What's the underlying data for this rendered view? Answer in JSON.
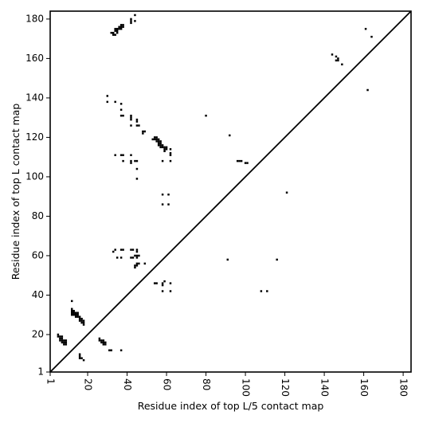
{
  "chart_data": {
    "type": "scatter",
    "xlabel": "Residue index of top L/5 contact map",
    "ylabel": "Residue index of top L contact map",
    "xlim": [
      1,
      184
    ],
    "ylim": [
      1,
      184
    ],
    "xticks": [
      1,
      20,
      40,
      60,
      80,
      100,
      120,
      140,
      160,
      180
    ],
    "yticks": [
      1,
      20,
      40,
      60,
      80,
      100,
      120,
      140,
      160,
      180
    ],
    "diagonal": true,
    "marker_color": "#000000",
    "points": [
      [
        44,
        182
      ],
      [
        44,
        179
      ],
      [
        42,
        180
      ],
      [
        42,
        179
      ],
      [
        42,
        178
      ],
      [
        38,
        177
      ],
      [
        37,
        177
      ],
      [
        38,
        176
      ],
      [
        37,
        176
      ],
      [
        36,
        176
      ],
      [
        37,
        175
      ],
      [
        36,
        175
      ],
      [
        35,
        175
      ],
      [
        34,
        175
      ],
      [
        35,
        174
      ],
      [
        34,
        174
      ],
      [
        35,
        173
      ],
      [
        33,
        173
      ],
      [
        32,
        173
      ],
      [
        34,
        172
      ],
      [
        33,
        172
      ],
      [
        161,
        175
      ],
      [
        164,
        171
      ],
      [
        144,
        162
      ],
      [
        146,
        161
      ],
      [
        147,
        160
      ],
      [
        146,
        159
      ],
      [
        147,
        159
      ],
      [
        149,
        157
      ],
      [
        162,
        144
      ],
      [
        30,
        141
      ],
      [
        30,
        138
      ],
      [
        34,
        138
      ],
      [
        37,
        137
      ],
      [
        37,
        134
      ],
      [
        37,
        131
      ],
      [
        38,
        131
      ],
      [
        42,
        131
      ],
      [
        42,
        130
      ],
      [
        42,
        129
      ],
      [
        45,
        129
      ],
      [
        45,
        128
      ],
      [
        42,
        126
      ],
      [
        45,
        126
      ],
      [
        46,
        126
      ],
      [
        80,
        131
      ],
      [
        48,
        123
      ],
      [
        49,
        123
      ],
      [
        48,
        122
      ],
      [
        92,
        121
      ],
      [
        53,
        119
      ],
      [
        54,
        120
      ],
      [
        55,
        120
      ],
      [
        54,
        119
      ],
      [
        55,
        119
      ],
      [
        56,
        119
      ],
      [
        55,
        118
      ],
      [
        56,
        118
      ],
      [
        57,
        118
      ],
      [
        56,
        117
      ],
      [
        57,
        117
      ],
      [
        56,
        116
      ],
      [
        57,
        116
      ],
      [
        58,
        116
      ],
      [
        57,
        115
      ],
      [
        58,
        115
      ],
      [
        59,
        115
      ],
      [
        60,
        115
      ],
      [
        59,
        114
      ],
      [
        60,
        114
      ],
      [
        62,
        114
      ],
      [
        59,
        113
      ],
      [
        62,
        112
      ],
      [
        62,
        111
      ],
      [
        34,
        111
      ],
      [
        37,
        111
      ],
      [
        38,
        111
      ],
      [
        42,
        111
      ],
      [
        38,
        108
      ],
      [
        42,
        108
      ],
      [
        44,
        108
      ],
      [
        45,
        108
      ],
      [
        42,
        107
      ],
      [
        58,
        108
      ],
      [
        62,
        108
      ],
      [
        96,
        108
      ],
      [
        97,
        108
      ],
      [
        98,
        108
      ],
      [
        100,
        107
      ],
      [
        101,
        107
      ],
      [
        45,
        104
      ],
      [
        45,
        99
      ],
      [
        58,
        91
      ],
      [
        61,
        91
      ],
      [
        58,
        86
      ],
      [
        61,
        86
      ],
      [
        121,
        92
      ],
      [
        33,
        62
      ],
      [
        34,
        63
      ],
      [
        37,
        63
      ],
      [
        38,
        63
      ],
      [
        42,
        63
      ],
      [
        43,
        63
      ],
      [
        45,
        63
      ],
      [
        45,
        62
      ],
      [
        35,
        59
      ],
      [
        37,
        59
      ],
      [
        42,
        59
      ],
      [
        43,
        59
      ],
      [
        44,
        60
      ],
      [
        45,
        60
      ],
      [
        46,
        60
      ],
      [
        45,
        59
      ],
      [
        49,
        56
      ],
      [
        45,
        56
      ],
      [
        46,
        56
      ],
      [
        44,
        55
      ],
      [
        45,
        55
      ],
      [
        44,
        54
      ],
      [
        91,
        58
      ],
      [
        116,
        58
      ],
      [
        54,
        46
      ],
      [
        55,
        46
      ],
      [
        58,
        46
      ],
      [
        59,
        47
      ],
      [
        62,
        46
      ],
      [
        58,
        45
      ],
      [
        58,
        42
      ],
      [
        62,
        42
      ],
      [
        108,
        42
      ],
      [
        111,
        42
      ],
      [
        12,
        37
      ],
      [
        12,
        33
      ],
      [
        12,
        32
      ],
      [
        13,
        32
      ],
      [
        12,
        31
      ],
      [
        13,
        31
      ],
      [
        14,
        31
      ],
      [
        15,
        31
      ],
      [
        12,
        30
      ],
      [
        13,
        30
      ],
      [
        14,
        30
      ],
      [
        15,
        30
      ],
      [
        14,
        29
      ],
      [
        15,
        29
      ],
      [
        16,
        29
      ],
      [
        16,
        28
      ],
      [
        17,
        28
      ],
      [
        16,
        27
      ],
      [
        17,
        27
      ],
      [
        18,
        27
      ],
      [
        17,
        26
      ],
      [
        18,
        26
      ],
      [
        18,
        25
      ],
      [
        5,
        20
      ],
      [
        5,
        19
      ],
      [
        6,
        19
      ],
      [
        7,
        19
      ],
      [
        6,
        18
      ],
      [
        7,
        18
      ],
      [
        6,
        17
      ],
      [
        7,
        17
      ],
      [
        8,
        17
      ],
      [
        9,
        17
      ],
      [
        7,
        16
      ],
      [
        8,
        16
      ],
      [
        9,
        16
      ],
      [
        8,
        15
      ],
      [
        9,
        15
      ],
      [
        26,
        18
      ],
      [
        26,
        17
      ],
      [
        27,
        17
      ],
      [
        28,
        17
      ],
      [
        27,
        16
      ],
      [
        28,
        16
      ],
      [
        29,
        16
      ],
      [
        28,
        15
      ],
      [
        29,
        15
      ],
      [
        31,
        12
      ],
      [
        32,
        12
      ],
      [
        37,
        12
      ],
      [
        16,
        10
      ],
      [
        16,
        9
      ],
      [
        16,
        8
      ],
      [
        17,
        8
      ],
      [
        18,
        7
      ]
    ]
  }
}
